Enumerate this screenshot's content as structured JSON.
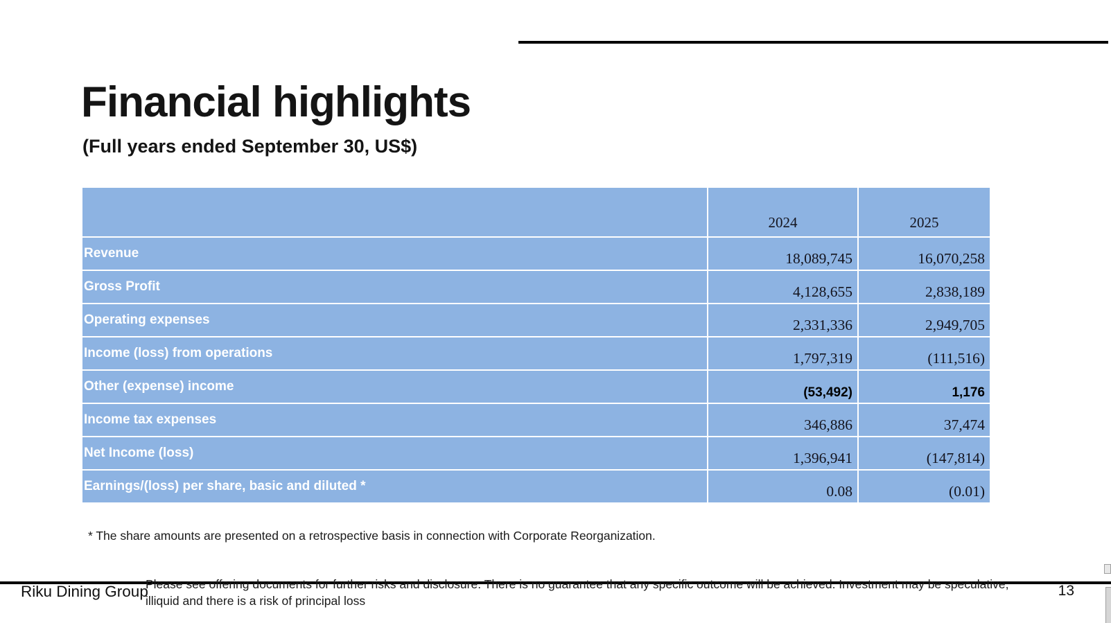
{
  "slide": {
    "title": "Financial highlights",
    "subtitle": "(Full years ended September 30, US$)",
    "footnote": "* The share amounts are presented on a retrospective basis in connection with Corporate Reorganization."
  },
  "table": {
    "year_headers": [
      "2024",
      "2025"
    ],
    "rows": [
      {
        "label": "Revenue",
        "y2024": "18,089,745",
        "y2025": "16,070,258",
        "style": "serif"
      },
      {
        "label": "Gross Profit",
        "y2024": "4,128,655",
        "y2025": "2,838,189",
        "style": "serif"
      },
      {
        "label": "Operating expenses",
        "y2024": "2,331,336",
        "y2025": "2,949,705",
        "style": "serif"
      },
      {
        "label": "Income (loss) from operations",
        "y2024": "1,797,319",
        "y2025": "(111,516)",
        "style": "serif"
      },
      {
        "label": "Other (expense) income",
        "y2024": "(53,492)",
        "y2025": "1,176",
        "style": "sans"
      },
      {
        "label": "Income tax expenses",
        "y2024": "346,886",
        "y2025": "37,474",
        "style": "serif"
      },
      {
        "label": "Net Income (loss)",
        "y2024": "1,396,941",
        "y2025": "(147,814)",
        "style": "serif"
      },
      {
        "label": "Earnings/(loss) per share, basic and diluted *",
        "y2024": "0.08",
        "y2025": "(0.01)",
        "style": "serif"
      }
    ],
    "colors": {
      "cell_bg": "#8DB3E2",
      "border": "#FFFFFF",
      "label_text": "#FFFFFF",
      "value_text": "#14141E"
    }
  },
  "footer": {
    "brand": "Riku Dining Group",
    "disclaimer_line1": "Please see offering documents for further risks and disclosure. There is no guarantee that any specific outcome will be achieved. Investment may be speculative,",
    "disclaimer_line2": "illiquid and there is a risk of principal loss",
    "page_number": "13"
  }
}
